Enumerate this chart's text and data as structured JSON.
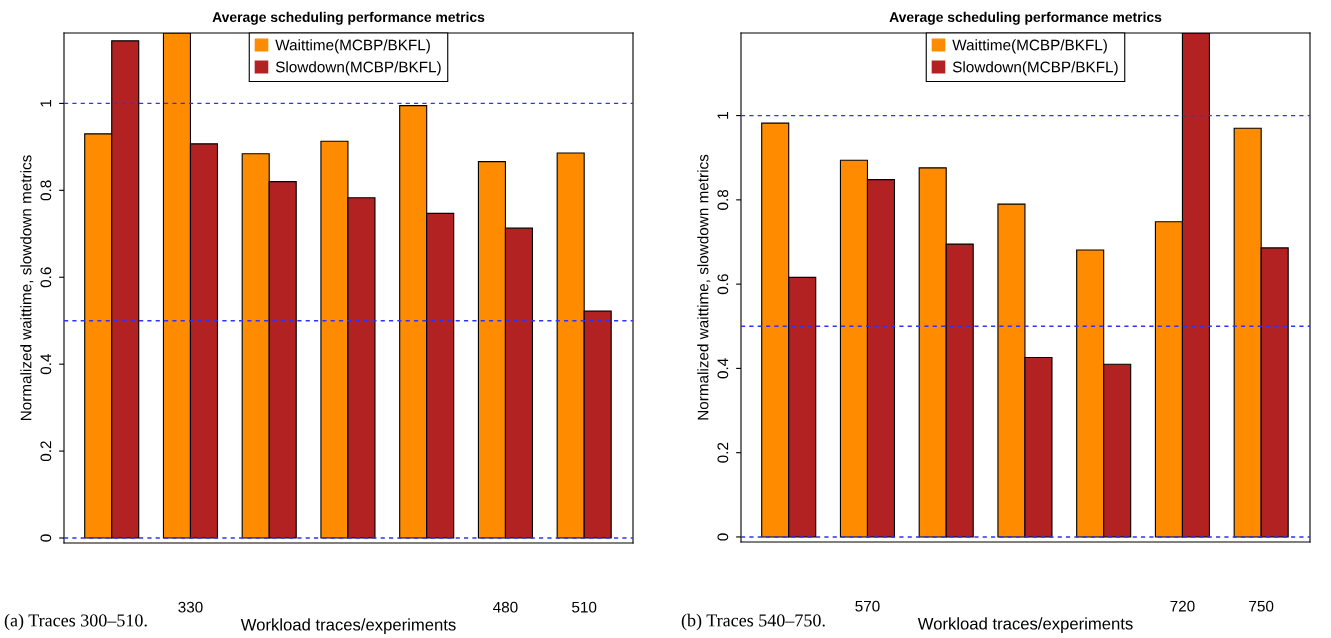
{
  "chart_data": [
    {
      "type": "bar",
      "title": "Average scheduling performance metrics",
      "xlabel": "Workload traces/experiments",
      "ylabel": "Normalized waittime, slowdown metrics",
      "categories": [
        null,
        "330",
        null,
        null,
        null,
        "480",
        "510"
      ],
      "series": [
        {
          "name": "Waittime(MCBP/BKFL)",
          "color": "#ff8c00",
          "values": [
            0.93,
            1.162,
            0.884,
            0.913,
            0.995,
            0.866,
            0.886
          ]
        },
        {
          "name": "Slowdown(MCBP/BKFL)",
          "color": "#b22222",
          "values": [
            1.144,
            0.907,
            0.82,
            0.783,
            0.747,
            0.713,
            0.522
          ]
        }
      ],
      "ylim": [
        -0.0115,
        1.162
      ],
      "yticks": [
        0,
        0.2,
        0.4,
        0.6,
        0.8,
        1
      ],
      "grid": false,
      "legend": "top",
      "ref_lines": [
        {
          "axis": "y",
          "value": 0,
          "color": "#3030ff",
          "line_style": "dashed"
        },
        {
          "axis": "y",
          "value": 0.5,
          "color": "#3030ff",
          "line_style": "dashed"
        },
        {
          "axis": "y",
          "value": 1,
          "color": "#3030ff",
          "line_style": "dashed"
        }
      ],
      "annotations": [
        "(a) Traces 300–510."
      ]
    },
    {
      "type": "bar",
      "title": "Average scheduling performance metrics",
      "xlabel": "Workload traces/experiments",
      "ylabel": "Normalized waittime, slowdown metrics",
      "categories": [
        null,
        "570",
        null,
        null,
        null,
        "720",
        "750"
      ],
      "series": [
        {
          "name": "Waittime(MCBP/BKFL)",
          "color": "#ff8c00",
          "values": [
            0.982,
            0.894,
            0.876,
            0.79,
            0.681,
            0.748,
            0.97
          ]
        },
        {
          "name": "Slowdown(MCBP/BKFL)",
          "color": "#b22222",
          "values": [
            0.616,
            0.848,
            0.695,
            0.426,
            0.41,
            1.196,
            0.686
          ]
        }
      ],
      "ylim": [
        -0.012,
        1.196
      ],
      "yticks": [
        0,
        0.2,
        0.4,
        0.6,
        0.8,
        1
      ],
      "grid": false,
      "legend": "top",
      "ref_lines": [
        {
          "axis": "y",
          "value": 0,
          "color": "#3030ff",
          "line_style": "dashed"
        },
        {
          "axis": "y",
          "value": 0.5,
          "color": "#3030ff",
          "line_style": "dashed"
        },
        {
          "axis": "y",
          "value": 1,
          "color": "#3030ff",
          "line_style": "dashed"
        }
      ],
      "annotations": [
        "(b) Traces 540–750."
      ]
    }
  ]
}
